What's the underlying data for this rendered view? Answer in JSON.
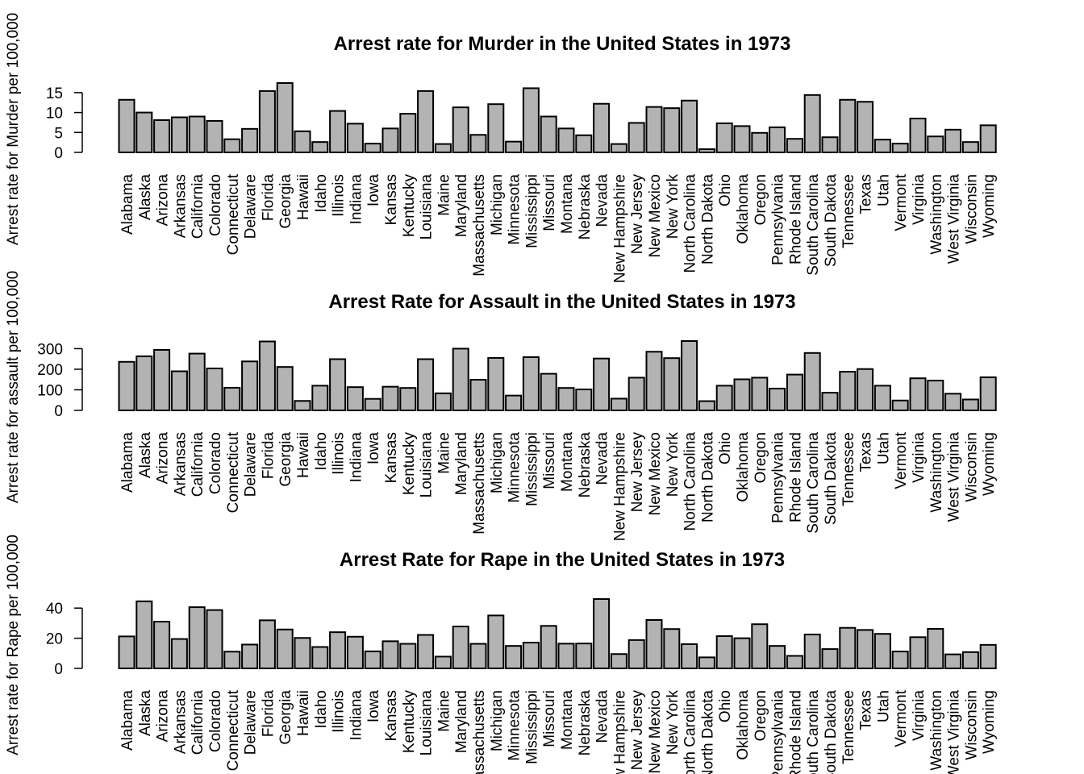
{
  "chart_data": [
    {
      "type": "bar",
      "title": "Arrest rate for Murder in the United States in 1973",
      "xlabel": "",
      "ylabel": "Arrest rate for Murder per 100,000",
      "ylim": [
        0,
        17.4
      ],
      "yticks": [
        0,
        5,
        10,
        15
      ],
      "categories": [
        "Alabama",
        "Alaska",
        "Arizona",
        "Arkansas",
        "California",
        "Colorado",
        "Connecticut",
        "Delaware",
        "Florida",
        "Georgia",
        "Hawaii",
        "Idaho",
        "Illinois",
        "Indiana",
        "Iowa",
        "Kansas",
        "Kentucky",
        "Louisiana",
        "Maine",
        "Maryland",
        "Massachusetts",
        "Michigan",
        "Minnesota",
        "Mississippi",
        "Missouri",
        "Montana",
        "Nebraska",
        "Nevada",
        "New Hampshire",
        "New Jersey",
        "New Mexico",
        "New York",
        "North Carolina",
        "North Dakota",
        "Ohio",
        "Oklahoma",
        "Oregon",
        "Pennsylvania",
        "Rhode Island",
        "South Carolina",
        "South Dakota",
        "Tennessee",
        "Texas",
        "Utah",
        "Vermont",
        "Virginia",
        "Washington",
        "West Virginia",
        "Wisconsin",
        "Wyoming"
      ],
      "values": [
        13.2,
        10.0,
        8.1,
        8.8,
        9.0,
        7.9,
        3.3,
        5.9,
        15.4,
        17.4,
        5.3,
        2.6,
        10.4,
        7.2,
        2.2,
        6.0,
        9.7,
        15.4,
        2.1,
        11.3,
        4.4,
        12.1,
        2.7,
        16.1,
        9.0,
        6.0,
        4.3,
        12.2,
        2.1,
        7.4,
        11.4,
        11.1,
        13.0,
        0.8,
        7.3,
        6.6,
        4.9,
        6.3,
        3.4,
        14.4,
        3.8,
        13.2,
        12.7,
        3.2,
        2.2,
        8.5,
        4.0,
        5.7,
        2.6,
        6.8
      ]
    },
    {
      "type": "bar",
      "title": "Arrest Rate for Assault in the United States in 1973",
      "xlabel": "",
      "ylabel": "Arrest rate for assault per 100,000",
      "ylim": [
        0,
        337
      ],
      "yticks": [
        0,
        100,
        200,
        300
      ],
      "categories": [
        "Alabama",
        "Alaska",
        "Arizona",
        "Arkansas",
        "California",
        "Colorado",
        "Connecticut",
        "Delaware",
        "Florida",
        "Georgia",
        "Hawaii",
        "Idaho",
        "Illinois",
        "Indiana",
        "Iowa",
        "Kansas",
        "Kentucky",
        "Louisiana",
        "Maine",
        "Maryland",
        "Massachusetts",
        "Michigan",
        "Minnesota",
        "Mississippi",
        "Missouri",
        "Montana",
        "Nebraska",
        "Nevada",
        "New Hampshire",
        "New Jersey",
        "New Mexico",
        "New York",
        "North Carolina",
        "North Dakota",
        "Ohio",
        "Oklahoma",
        "Oregon",
        "Pennsylvania",
        "Rhode Island",
        "South Carolina",
        "South Dakota",
        "Tennessee",
        "Texas",
        "Utah",
        "Vermont",
        "Virginia",
        "Washington",
        "West Virginia",
        "Wisconsin",
        "Wyoming"
      ],
      "values": [
        236,
        263,
        294,
        190,
        276,
        204,
        110,
        238,
        335,
        211,
        46,
        120,
        249,
        113,
        56,
        115,
        109,
        249,
        83,
        300,
        149,
        255,
        72,
        259,
        178,
        109,
        102,
        252,
        57,
        159,
        285,
        254,
        337,
        45,
        120,
        151,
        159,
        106,
        174,
        279,
        86,
        188,
        201,
        120,
        48,
        156,
        145,
        81,
        53,
        161
      ]
    },
    {
      "type": "bar",
      "title": "Arrest Rate for Rape in the United States in 1973",
      "xlabel": "",
      "ylabel": "Arrest rate for Rape per 100,000",
      "ylim": [
        0,
        46.0
      ],
      "yticks": [
        0,
        20,
        40
      ],
      "categories": [
        "Alabama",
        "Alaska",
        "Arizona",
        "Arkansas",
        "California",
        "Colorado",
        "Connecticut",
        "Delaware",
        "Florida",
        "Georgia",
        "Hawaii",
        "Idaho",
        "Illinois",
        "Indiana",
        "Iowa",
        "Kansas",
        "Kentucky",
        "Louisiana",
        "Maine",
        "Maryland",
        "Massachusetts",
        "Michigan",
        "Minnesota",
        "Mississippi",
        "Missouri",
        "Montana",
        "Nebraska",
        "Nevada",
        "New Hampshire",
        "New Jersey",
        "New Mexico",
        "New York",
        "North Carolina",
        "North Dakota",
        "Ohio",
        "Oklahoma",
        "Oregon",
        "Pennsylvania",
        "Rhode Island",
        "South Carolina",
        "South Dakota",
        "Tennessee",
        "Texas",
        "Utah",
        "Vermont",
        "Virginia",
        "Washington",
        "West Virginia",
        "Wisconsin",
        "Wyoming"
      ],
      "values": [
        21.2,
        44.5,
        31.0,
        19.5,
        40.6,
        38.7,
        11.1,
        15.8,
        31.9,
        25.8,
        20.2,
        14.2,
        24.0,
        21.0,
        11.3,
        18.0,
        16.3,
        22.2,
        7.8,
        27.8,
        16.3,
        35.1,
        14.9,
        17.1,
        28.2,
        16.4,
        16.5,
        46.0,
        9.5,
        18.8,
        32.1,
        26.1,
        16.1,
        7.3,
        21.4,
        20.0,
        29.3,
        14.9,
        8.3,
        22.5,
        12.8,
        26.9,
        25.5,
        22.9,
        11.2,
        20.7,
        26.2,
        9.3,
        10.8,
        15.6
      ]
    }
  ]
}
